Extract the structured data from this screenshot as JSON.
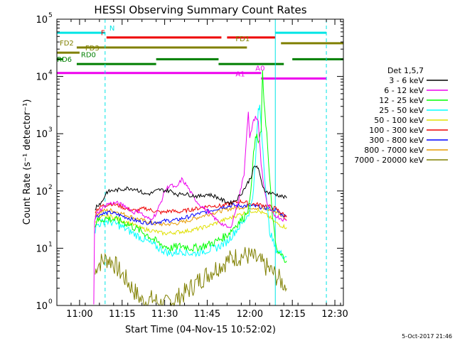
{
  "chart_data": {
    "type": "line",
    "title": "HESSI Observing Summary Count Rates",
    "xlabel": "Start Time (04-Nov-15 10:52:02)",
    "ylabel": "Count Rate (s⁻¹ detector⁻¹)",
    "x_unit": "minutes after 10:52:02 UT",
    "x_range": [
      0,
      101
    ],
    "ylim": [
      1,
      100000
    ],
    "y_scale": "log",
    "x_ticks": [
      {
        "t": 8,
        "label": "11:00"
      },
      {
        "t": 23,
        "label": "11:15"
      },
      {
        "t": 38,
        "label": "11:30"
      },
      {
        "t": 53,
        "label": "11:45"
      },
      {
        "t": 68,
        "label": "12:00"
      },
      {
        "t": 83,
        "label": "12:15"
      },
      {
        "t": 98,
        "label": "12:30"
      }
    ],
    "y_ticks": [
      {
        "exp": 0,
        "label": "10"
      },
      {
        "exp": 1,
        "label": "10"
      },
      {
        "exp": 2,
        "label": "10"
      },
      {
        "exp": 3,
        "label": "10"
      },
      {
        "exp": 4,
        "label": "10"
      },
      {
        "exp": 5,
        "label": "10"
      }
    ],
    "vlines": [
      {
        "t": 17.0,
        "color": "#00e5e5",
        "dash": true
      },
      {
        "t": 77.0,
        "color": "#00e5e5",
        "dash": false
      },
      {
        "t": 95.0,
        "color": "#00e5e5",
        "dash": true
      }
    ],
    "legend": {
      "title": "Det 1,5,7",
      "position": "right"
    },
    "series": [
      {
        "name": "3 - 6 keV",
        "color": "#000000",
        "points": [
          [
            13.5,
            48
          ],
          [
            14,
            55
          ],
          [
            16,
            65
          ],
          [
            17.5,
            95
          ],
          [
            19,
            100
          ],
          [
            22,
            105
          ],
          [
            25,
            112
          ],
          [
            28,
            108
          ],
          [
            31,
            88
          ],
          [
            33,
            90
          ],
          [
            36,
            105
          ],
          [
            40,
            100
          ],
          [
            43,
            85
          ],
          [
            44,
            92
          ],
          [
            47,
            85
          ],
          [
            50,
            80
          ],
          [
            53,
            88
          ],
          [
            56,
            80
          ],
          [
            58,
            70
          ],
          [
            61,
            62
          ],
          [
            63,
            68
          ],
          [
            65,
            90
          ],
          [
            67,
            130
          ],
          [
            68.5,
            180
          ],
          [
            69.5,
            260
          ],
          [
            70.5,
            270
          ],
          [
            71,
            240
          ],
          [
            72,
            150
          ],
          [
            73,
            110
          ],
          [
            74,
            95
          ],
          [
            76,
            90
          ],
          [
            78,
            85
          ],
          [
            81,
            75
          ]
        ]
      },
      {
        "name": "6 - 12 keV",
        "color": "#ee00ee",
        "points": [
          [
            13,
            1.1
          ],
          [
            13.3,
            30
          ],
          [
            14,
            40
          ],
          [
            16,
            50
          ],
          [
            18,
            60
          ],
          [
            21,
            62
          ],
          [
            24,
            55
          ],
          [
            27,
            42
          ],
          [
            29,
            45
          ],
          [
            31,
            35
          ],
          [
            33,
            32
          ],
          [
            35,
            40
          ],
          [
            37,
            70
          ],
          [
            38,
            100
          ],
          [
            40,
            130
          ],
          [
            42,
            110
          ],
          [
            44,
            160
          ],
          [
            46,
            120
          ],
          [
            48,
            80
          ],
          [
            50,
            60
          ],
          [
            53,
            45
          ],
          [
            56,
            32
          ],
          [
            59,
            25
          ],
          [
            61,
            22
          ],
          [
            62,
            30
          ],
          [
            64,
            70
          ],
          [
            66,
            200
          ],
          [
            67,
            1200
          ],
          [
            67.5,
            2300
          ],
          [
            68,
            800
          ],
          [
            69,
            1500
          ],
          [
            70,
            2000
          ],
          [
            71,
            1600
          ],
          [
            72,
            300
          ],
          [
            73,
            120
          ],
          [
            74,
            60
          ],
          [
            76,
            40
          ],
          [
            78,
            35
          ],
          [
            81,
            30
          ]
        ]
      },
      {
        "name": "12 - 25 keV",
        "color": "#00ff00",
        "points": [
          [
            13.5,
            25
          ],
          [
            14,
            30
          ],
          [
            17,
            33
          ],
          [
            20,
            32
          ],
          [
            24,
            28
          ],
          [
            28,
            22
          ],
          [
            32,
            17
          ],
          [
            36,
            12
          ],
          [
            40,
            10
          ],
          [
            44,
            11
          ],
          [
            48,
            10
          ],
          [
            52,
            11
          ],
          [
            56,
            13
          ],
          [
            60,
            17
          ],
          [
            63,
            25
          ],
          [
            66,
            35
          ],
          [
            68,
            60
          ],
          [
            69,
            300
          ],
          [
            70,
            800
          ],
          [
            70.5,
            1000
          ],
          [
            71,
            600
          ],
          [
            72,
            1200
          ],
          [
            72.5,
            11000
          ],
          [
            73,
            4000
          ],
          [
            74,
            1000
          ],
          [
            75,
            150
          ],
          [
            76,
            40
          ],
          [
            77,
            12
          ],
          [
            78,
            8
          ],
          [
            80,
            7
          ],
          [
            81,
            6
          ]
        ]
      },
      {
        "name": "25 - 50 keV",
        "color": "#00ffff",
        "points": [
          [
            13.5,
            20
          ],
          [
            14,
            25
          ],
          [
            17,
            30
          ],
          [
            20,
            28
          ],
          [
            24,
            22
          ],
          [
            28,
            17
          ],
          [
            32,
            13
          ],
          [
            36,
            10
          ],
          [
            40,
            8
          ],
          [
            44,
            9
          ],
          [
            48,
            8
          ],
          [
            52,
            9
          ],
          [
            56,
            10
          ],
          [
            60,
            13
          ],
          [
            63,
            20
          ],
          [
            66,
            30
          ],
          [
            68,
            45
          ],
          [
            69,
            80
          ],
          [
            70,
            300
          ],
          [
            70.5,
            1000
          ],
          [
            71,
            2400
          ],
          [
            71.5,
            3000
          ],
          [
            72,
            1500
          ],
          [
            73,
            300
          ],
          [
            74,
            60
          ],
          [
            75,
            20
          ],
          [
            77,
            10
          ],
          [
            79,
            8
          ],
          [
            81,
            7
          ]
        ]
      },
      {
        "name": "50 - 100 keV",
        "color": "#e0e000",
        "points": [
          [
            13.5,
            30
          ],
          [
            16,
            35
          ],
          [
            19,
            36
          ],
          [
            22,
            32
          ],
          [
            26,
            27
          ],
          [
            30,
            22
          ],
          [
            34,
            20
          ],
          [
            38,
            18
          ],
          [
            42,
            19
          ],
          [
            46,
            20
          ],
          [
            50,
            22
          ],
          [
            54,
            25
          ],
          [
            58,
            30
          ],
          [
            62,
            35
          ],
          [
            65,
            40
          ],
          [
            67,
            42
          ],
          [
            69,
            45
          ],
          [
            71,
            45
          ],
          [
            73,
            40
          ],
          [
            75,
            35
          ],
          [
            77,
            28
          ],
          [
            79,
            25
          ],
          [
            81,
            23
          ]
        ]
      },
      {
        "name": "100 - 300 keV",
        "color": "#ee0000",
        "points": [
          [
            13.5,
            45
          ],
          [
            16,
            55
          ],
          [
            19,
            60
          ],
          [
            22,
            55
          ],
          [
            25,
            48
          ],
          [
            28,
            45
          ],
          [
            31,
            50
          ],
          [
            34,
            45
          ],
          [
            37,
            42
          ],
          [
            40,
            45
          ],
          [
            43,
            43
          ],
          [
            46,
            46
          ],
          [
            50,
            50
          ],
          [
            54,
            55
          ],
          [
            58,
            55
          ],
          [
            62,
            62
          ],
          [
            65,
            66
          ],
          [
            68,
            60
          ],
          [
            71,
            58
          ],
          [
            74,
            55
          ],
          [
            77,
            50
          ],
          [
            79,
            42
          ],
          [
            81,
            35
          ]
        ]
      },
      {
        "name": "300 - 800 keV",
        "color": "#0000ff",
        "points": [
          [
            13.5,
            35
          ],
          [
            16,
            40
          ],
          [
            19,
            42
          ],
          [
            22,
            38
          ],
          [
            25,
            34
          ],
          [
            28,
            30
          ],
          [
            31,
            28
          ],
          [
            34,
            28
          ],
          [
            38,
            30
          ],
          [
            42,
            31
          ],
          [
            46,
            35
          ],
          [
            50,
            40
          ],
          [
            54,
            45
          ],
          [
            58,
            52
          ],
          [
            62,
            56
          ],
          [
            65,
            55
          ],
          [
            68,
            55
          ],
          [
            71,
            53
          ],
          [
            74,
            50
          ],
          [
            77,
            47
          ],
          [
            79,
            40
          ],
          [
            81,
            35
          ]
        ]
      },
      {
        "name": "800 - 7000 keV",
        "color": "#e69a00",
        "points": [
          [
            13.5,
            38
          ],
          [
            16,
            45
          ],
          [
            19,
            46
          ],
          [
            22,
            42
          ],
          [
            25,
            37
          ],
          [
            28,
            33
          ],
          [
            31,
            30
          ],
          [
            34,
            27
          ],
          [
            38,
            26
          ],
          [
            42,
            27
          ],
          [
            46,
            30
          ],
          [
            50,
            35
          ],
          [
            54,
            40
          ],
          [
            58,
            45
          ],
          [
            62,
            50
          ],
          [
            65,
            52
          ],
          [
            68,
            52
          ],
          [
            71,
            50
          ],
          [
            74,
            48
          ],
          [
            77,
            44
          ],
          [
            79,
            38
          ],
          [
            81,
            32
          ]
        ]
      },
      {
        "name": "7000 - 20000 keV",
        "color": "#808000",
        "points": [
          [
            13.5,
            3.5
          ],
          [
            14,
            5
          ],
          [
            16,
            6
          ],
          [
            18,
            6.5
          ],
          [
            20,
            5.5
          ],
          [
            22,
            4
          ],
          [
            24,
            3
          ],
          [
            26,
            2.2
          ],
          [
            28,
            1.6
          ],
          [
            30,
            1.2
          ],
          [
            32,
            1.2
          ],
          [
            34,
            1.3
          ],
          [
            36,
            1.1
          ],
          [
            38,
            1.0
          ],
          [
            40,
            1.2
          ],
          [
            42,
            1.3
          ],
          [
            44,
            1.5
          ],
          [
            46,
            1.8
          ],
          [
            48,
            2.2
          ],
          [
            50,
            2.7
          ],
          [
            52,
            3.2
          ],
          [
            54,
            3.8
          ],
          [
            56,
            4.5
          ],
          [
            58,
            5.2
          ],
          [
            60,
            6
          ],
          [
            62,
            6.8
          ],
          [
            64,
            7.2
          ],
          [
            66,
            7.5
          ],
          [
            68,
            7.3
          ],
          [
            70,
            6.5
          ],
          [
            72,
            5.5
          ],
          [
            74,
            4.6
          ],
          [
            76,
            3.8
          ],
          [
            78,
            3
          ],
          [
            80,
            2.4
          ],
          [
            81,
            2
          ]
        ]
      }
    ],
    "observing_flags": [
      {
        "label": "N",
        "color": "#00e5e5",
        "bands": [
          [
            0,
            17
          ],
          [
            77,
            95
          ]
        ],
        "level": 58000,
        "label_t": 18.5
      },
      {
        "label": "F",
        "color": "#ee0000",
        "bands": [
          [
            17.5,
            58
          ],
          [
            60,
            77
          ]
        ],
        "level": 48000,
        "label_t": 15.5
      },
      {
        "label": "FD1",
        "color": "#808000",
        "bands": [
          [
            79,
            101
          ]
        ],
        "level": 38000,
        "label_t": 63
      },
      {
        "label": "FD2",
        "color": "#808000",
        "bands": [
          [
            7,
            67
          ]
        ],
        "level": 32000,
        "label_t": 1
      },
      {
        "label": "FD3",
        "color": "#808000",
        "bands": [
          [
            0,
            8
          ]
        ],
        "level": 26000,
        "label_t": 10
      },
      {
        "label": "RD0",
        "color": "#007f00",
        "bands": [
          [
            0,
            2
          ],
          [
            35,
            57
          ],
          [
            83,
            101
          ]
        ],
        "level": 20000,
        "label_t": 8.5
      },
      {
        "label": "RD6",
        "color": "#007f00",
        "bands": [
          [
            7,
            35
          ],
          [
            57,
            80
          ]
        ],
        "level": 16500,
        "label_t": 0
      },
      {
        "label": "A0",
        "color": "#ee00ee",
        "bands": [
          [
            0,
            72
          ]
        ],
        "level": 11500,
        "label_t": 70
      },
      {
        "label": "A1",
        "color": "#ee00ee",
        "bands": [
          [
            72,
            95
          ]
        ],
        "level": 9200,
        "label_t": 63
      }
    ]
  },
  "footer": {
    "date_stamp": "5-Oct-2017 21:46"
  }
}
